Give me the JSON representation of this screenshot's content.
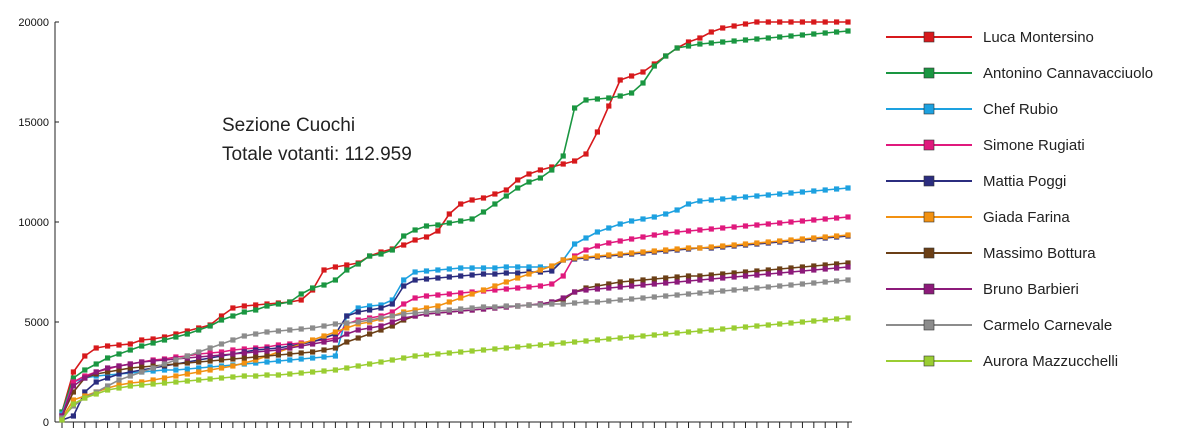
{
  "chart_data": {
    "type": "line",
    "title": "",
    "xlabel": "",
    "ylabel": "",
    "ylim": [
      0,
      20000
    ],
    "yticks": [
      0,
      5000,
      10000,
      15000,
      20000
    ],
    "grid": false,
    "legend_position": "right",
    "annotation": {
      "line1": "Sezione Cuochi",
      "line2": "Totale votanti: 112.959"
    },
    "x": [
      1,
      2,
      3,
      4,
      5,
      6,
      7,
      8,
      9,
      10,
      11,
      12,
      13,
      14,
      15,
      16,
      17,
      18,
      19,
      20,
      21,
      22,
      23,
      24,
      25,
      26,
      27,
      28,
      29,
      30,
      31,
      32,
      33,
      34,
      35,
      36,
      37,
      38,
      39,
      40,
      41,
      42,
      43,
      44,
      45,
      46,
      47,
      48,
      49,
      50,
      51,
      52,
      53,
      54,
      55,
      56,
      57,
      58,
      59,
      60,
      61,
      62,
      63,
      64,
      65,
      66,
      67,
      68,
      69,
      70
    ],
    "series": [
      {
        "name": "Luca Montersino",
        "color": "#d7191c",
        "values": [
          500,
          2500,
          3300,
          3700,
          3800,
          3850,
          3900,
          4100,
          4150,
          4250,
          4400,
          4550,
          4700,
          4850,
          5300,
          5700,
          5800,
          5850,
          5900,
          5950,
          6000,
          6100,
          6600,
          7600,
          7750,
          7850,
          7950,
          8300,
          8500,
          8650,
          8850,
          9100,
          9250,
          9550,
          10400,
          10900,
          11100,
          11200,
          11400,
          11600,
          12100,
          12400,
          12600,
          12750,
          12900,
          13050,
          13400,
          14500,
          15800,
          17100,
          17300,
          17500,
          17900,
          18300,
          18700,
          19000,
          19200,
          19500,
          19700,
          19800,
          19900,
          20000,
          20000,
          20000,
          20000,
          20000,
          20000,
          20000,
          20000,
          20000
        ]
      },
      {
        "name": "Antonino Cannavacciuolo",
        "color": "#1a9641",
        "values": [
          500,
          2200,
          2600,
          2900,
          3200,
          3400,
          3600,
          3800,
          3950,
          4100,
          4250,
          4400,
          4600,
          4800,
          5100,
          5300,
          5500,
          5600,
          5800,
          5900,
          6000,
          6400,
          6700,
          6850,
          7100,
          7600,
          7900,
          8300,
          8400,
          8600,
          9300,
          9600,
          9800,
          9850,
          9950,
          10050,
          10150,
          10500,
          10900,
          11300,
          11700,
          12000,
          12200,
          12600,
          13300,
          15700,
          16100,
          16150,
          16200,
          16300,
          16450,
          16950,
          17800,
          18300,
          18700,
          18800,
          18900,
          18950,
          19000,
          19050,
          19100,
          19150,
          19200,
          19250,
          19300,
          19350,
          19400,
          19450,
          19500,
          19550
        ]
      },
      {
        "name": "Chef  Rubio",
        "color": "#1da1e0",
        "values": [
          400,
          2000,
          2200,
          2300,
          2350,
          2400,
          2450,
          2500,
          2550,
          2600,
          2600,
          2650,
          2700,
          2750,
          2800,
          2850,
          2900,
          2950,
          3000,
          3050,
          3100,
          3150,
          3200,
          3250,
          3300,
          5300,
          5700,
          5800,
          5850,
          6100,
          7100,
          7500,
          7550,
          7600,
          7650,
          7700,
          7700,
          7700,
          7700,
          7750,
          7750,
          7750,
          7750,
          7750,
          8100,
          8900,
          9200,
          9500,
          9700,
          9900,
          10050,
          10150,
          10250,
          10400,
          10600,
          10900,
          11050,
          11100,
          11150,
          11200,
          11250,
          11300,
          11350,
          11400,
          11450,
          11500,
          11550,
          11600,
          11650,
          11700
        ]
      },
      {
        "name": "Simone Rugiati",
        "color": "#e0197d",
        "values": [
          300,
          2000,
          2300,
          2500,
          2650,
          2800,
          2900,
          3000,
          3100,
          3150,
          3250,
          3300,
          3400,
          3450,
          3500,
          3600,
          3650,
          3700,
          3750,
          3850,
          3900,
          3950,
          4050,
          4100,
          4200,
          4900,
          5100,
          5200,
          5300,
          5500,
          5900,
          6200,
          6300,
          6350,
          6400,
          6450,
          6500,
          6550,
          6600,
          6650,
          6700,
          6750,
          6800,
          6900,
          7300,
          8300,
          8600,
          8800,
          8950,
          9050,
          9150,
          9250,
          9350,
          9450,
          9500,
          9550,
          9600,
          9650,
          9700,
          9750,
          9800,
          9850,
          9900,
          9950,
          10000,
          10050,
          10100,
          10150,
          10200,
          10250
        ]
      },
      {
        "name": "Mattia Poggi",
        "color": "#2b2d7f",
        "values": [
          100,
          300,
          1500,
          2000,
          2200,
          2400,
          2500,
          2600,
          2700,
          2800,
          2900,
          3000,
          3100,
          3200,
          3300,
          3400,
          3500,
          3600,
          3650,
          3700,
          3800,
          3900,
          4000,
          4200,
          4400,
          5300,
          5500,
          5600,
          5700,
          5900,
          6800,
          7100,
          7150,
          7200,
          7250,
          7300,
          7350,
          7400,
          7400,
          7450,
          7450,
          7500,
          7500,
          7550,
          8100,
          8150,
          8200,
          8250,
          8300,
          8350,
          8400,
          8450,
          8500,
          8550,
          8600,
          8650,
          8700,
          8700,
          8750,
          8800,
          8850,
          8900,
          8950,
          9000,
          9050,
          9100,
          9150,
          9200,
          9250,
          9300
        ]
      },
      {
        "name": "Giada Farina",
        "color": "#f29111",
        "values": [
          200,
          1100,
          1300,
          1500,
          1700,
          1850,
          1950,
          2000,
          2100,
          2200,
          2300,
          2400,
          2500,
          2600,
          2700,
          2800,
          2950,
          3100,
          3300,
          3500,
          3700,
          3900,
          4100,
          4300,
          4500,
          4700,
          4900,
          5000,
          5150,
          5300,
          5500,
          5600,
          5700,
          5800,
          6000,
          6200,
          6400,
          6600,
          6800,
          7000,
          7200,
          7400,
          7600,
          7800,
          8100,
          8200,
          8250,
          8300,
          8350,
          8400,
          8450,
          8500,
          8550,
          8600,
          8650,
          8700,
          8700,
          8750,
          8800,
          8850,
          8900,
          8950,
          9000,
          9050,
          9100,
          9150,
          9200,
          9250,
          9300,
          9350
        ]
      },
      {
        "name": "Massimo Bottura",
        "color": "#6b3f16",
        "values": [
          300,
          1500,
          2200,
          2400,
          2500,
          2600,
          2700,
          2750,
          2800,
          2850,
          2900,
          2950,
          3000,
          3050,
          3100,
          3150,
          3200,
          3250,
          3300,
          3350,
          3400,
          3450,
          3500,
          3600,
          3700,
          4000,
          4200,
          4400,
          4600,
          4800,
          5100,
          5300,
          5400,
          5450,
          5500,
          5550,
          5600,
          5650,
          5700,
          5750,
          5800,
          5850,
          5900,
          6000,
          6100,
          6500,
          6700,
          6800,
          6900,
          7000,
          7050,
          7100,
          7150,
          7200,
          7250,
          7300,
          7300,
          7350,
          7400,
          7450,
          7500,
          7550,
          7600,
          7650,
          7700,
          7750,
          7800,
          7850,
          7900,
          7950
        ]
      },
      {
        "name": "Bruno Barbieri",
        "color": "#8c1a7a",
        "values": [
          300,
          1800,
          2200,
          2500,
          2700,
          2800,
          2900,
          3000,
          3050,
          3100,
          3150,
          3200,
          3250,
          3300,
          3350,
          3400,
          3450,
          3500,
          3550,
          3600,
          3700,
          3800,
          3900,
          4000,
          4100,
          4400,
          4600,
          4700,
          4800,
          5000,
          5200,
          5300,
          5400,
          5450,
          5500,
          5550,
          5600,
          5650,
          5700,
          5750,
          5800,
          5850,
          5900,
          6000,
          6200,
          6500,
          6600,
          6650,
          6700,
          6750,
          6800,
          6850,
          6900,
          6950,
          7000,
          7050,
          7100,
          7150,
          7200,
          7250,
          7300,
          7350,
          7400,
          7450,
          7500,
          7550,
          7600,
          7650,
          7700,
          7750
        ]
      },
      {
        "name": "Carmelo Carnevale",
        "color": "#8c8c8c",
        "values": [
          200,
          800,
          1200,
          1500,
          1800,
          2100,
          2300,
          2500,
          2700,
          2900,
          3100,
          3300,
          3500,
          3700,
          3900,
          4100,
          4300,
          4400,
          4500,
          4550,
          4600,
          4650,
          4700,
          4800,
          4900,
          4950,
          5000,
          5100,
          5200,
          5300,
          5400,
          5450,
          5500,
          5550,
          5600,
          5650,
          5700,
          5750,
          5750,
          5800,
          5800,
          5850,
          5850,
          5900,
          5900,
          5950,
          6000,
          6000,
          6050,
          6100,
          6150,
          6200,
          6250,
          6300,
          6350,
          6400,
          6450,
          6500,
          6550,
          6600,
          6650,
          6700,
          6750,
          6800,
          6850,
          6900,
          6950,
          7000,
          7050,
          7100
        ]
      },
      {
        "name": "Aurora Mazzucchelli",
        "color": "#9acd32",
        "values": [
          100,
          900,
          1200,
          1400,
          1600,
          1700,
          1800,
          1850,
          1900,
          1950,
          2000,
          2050,
          2100,
          2150,
          2200,
          2250,
          2300,
          2300,
          2350,
          2350,
          2400,
          2450,
          2500,
          2550,
          2600,
          2700,
          2800,
          2900,
          3000,
          3100,
          3200,
          3300,
          3350,
          3400,
          3450,
          3500,
          3550,
          3600,
          3650,
          3700,
          3750,
          3800,
          3850,
          3900,
          3950,
          4000,
          4050,
          4100,
          4150,
          4200,
          4250,
          4300,
          4350,
          4400,
          4450,
          4500,
          4550,
          4600,
          4650,
          4700,
          4750,
          4800,
          4850,
          4900,
          4950,
          5000,
          5050,
          5100,
          5150,
          5200
        ]
      }
    ]
  }
}
